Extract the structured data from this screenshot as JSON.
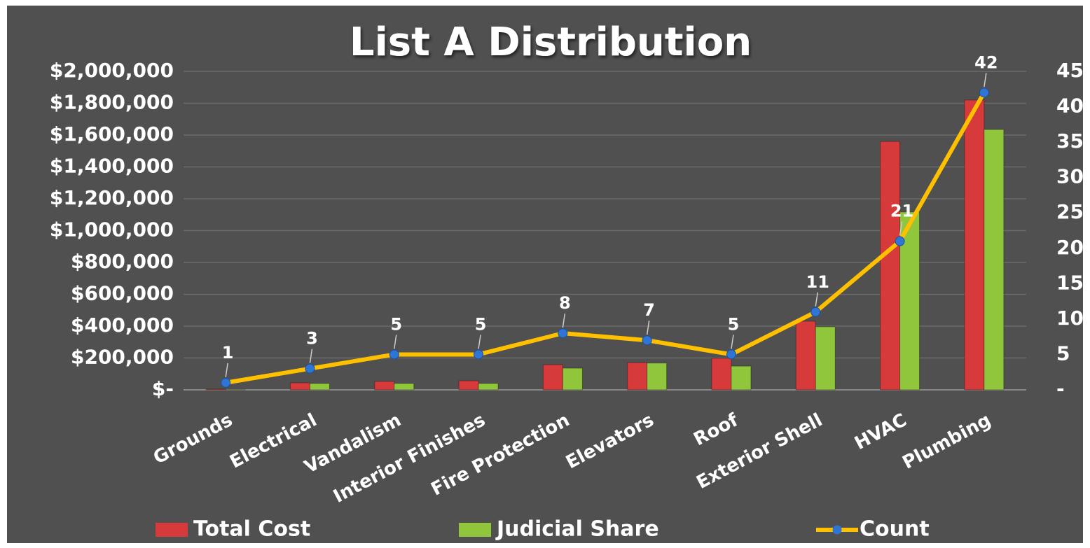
{
  "chart_data": {
    "type": "bar-line",
    "title": "List A Distribution",
    "categories": [
      "Grounds",
      "Electrical",
      "Vandalism",
      "Interior Finishes",
      "Fire Protection",
      "Elevators",
      "Roof",
      "Exterior Shell",
      "HVAC",
      "Plumbing"
    ],
    "series": [
      {
        "name": "Total Cost",
        "type": "bar",
        "color": "#d63a3a",
        "values": [
          5000,
          44000,
          53000,
          57000,
          158000,
          171000,
          198000,
          431000,
          1560000,
          1820000
        ]
      },
      {
        "name": "Judicial Share",
        "type": "bar",
        "color": "#8fc63c",
        "values": [
          2000,
          40000,
          40000,
          40000,
          136000,
          168000,
          149000,
          396000,
          1117000,
          1635000
        ]
      },
      {
        "name": "Count",
        "type": "line",
        "axis": "y2",
        "color": "#ffc000",
        "marker_color": "#2e75d6",
        "values": [
          1,
          3,
          5,
          5,
          8,
          7,
          5,
          11,
          21,
          42
        ]
      }
    ],
    "ylim": [
      0,
      2000000
    ],
    "yticks": [
      {
        "value": 0,
        "label": "$-"
      },
      {
        "value": 200000,
        "label": "$200,000"
      },
      {
        "value": 400000,
        "label": "$400,000"
      },
      {
        "value": 600000,
        "label": "$600,000"
      },
      {
        "value": 800000,
        "label": "$800,000"
      },
      {
        "value": 1000000,
        "label": "$1,000,000"
      },
      {
        "value": 1200000,
        "label": "$1,200,000"
      },
      {
        "value": 1400000,
        "label": "$1,400,000"
      },
      {
        "value": 1600000,
        "label": "$1,600,000"
      },
      {
        "value": 1800000,
        "label": "$1,800,000"
      },
      {
        "value": 2000000,
        "label": "$2,000,000"
      }
    ],
    "y2lim": [
      0,
      45
    ],
    "y2ticks": [
      {
        "value": 0,
        "label": "-"
      },
      5,
      10,
      15,
      20,
      25,
      30,
      35,
      40,
      45
    ],
    "grid": true,
    "legend": "bottom"
  }
}
